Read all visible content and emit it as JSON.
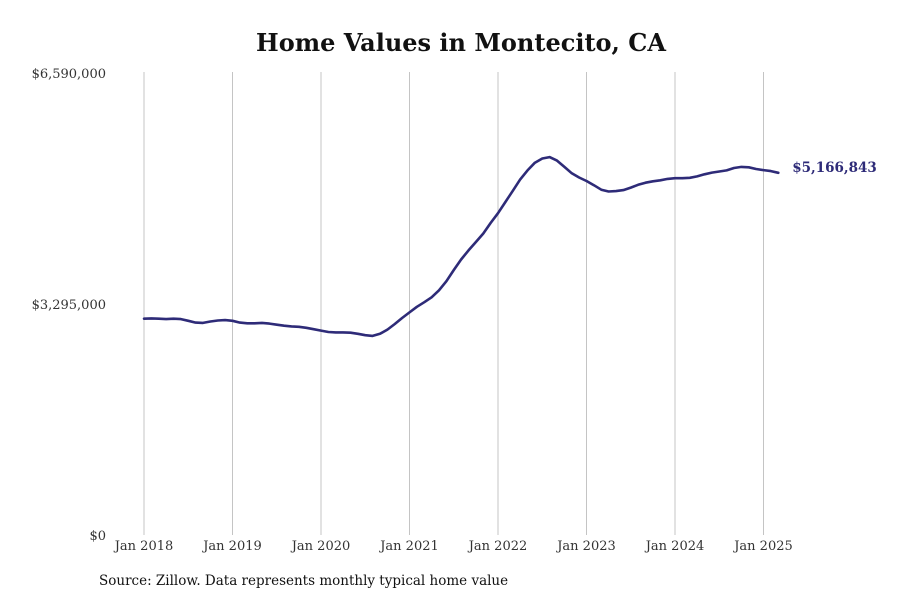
{
  "chart_data": {
    "type": "line",
    "title": "Home Values in Montecito, CA",
    "xlabel": "",
    "ylabel": "",
    "ylim": [
      0,
      6590000
    ],
    "y_ticks": [
      "$0",
      "$3,295,000",
      "$6,590,000"
    ],
    "x_ticks": [
      "Jan 2018",
      "Jan 2019",
      "Jan 2020",
      "Jan 2021",
      "Jan 2022",
      "Jan 2023",
      "Jan 2024",
      "Jan 2025"
    ],
    "grid": "vertical",
    "series_color": "#2e2b78",
    "end_label": "$5,166,843",
    "series": [
      {
        "x": [
          "2018-01",
          "2018-02",
          "2018-03",
          "2018-04",
          "2018-05",
          "2018-06",
          "2018-07",
          "2018-08",
          "2018-09",
          "2018-10",
          "2018-11",
          "2018-12",
          "2019-01",
          "2019-02",
          "2019-03",
          "2019-04",
          "2019-05",
          "2019-06",
          "2019-07",
          "2019-08",
          "2019-09",
          "2019-10",
          "2019-11",
          "2019-12",
          "2020-01",
          "2020-02",
          "2020-03",
          "2020-04",
          "2020-05",
          "2020-06",
          "2020-07",
          "2020-08",
          "2020-09",
          "2020-10",
          "2020-11",
          "2020-12",
          "2021-01",
          "2021-02",
          "2021-03",
          "2021-04",
          "2021-05",
          "2021-06",
          "2021-07",
          "2021-08",
          "2021-09",
          "2021-10",
          "2021-11",
          "2021-12",
          "2022-01",
          "2022-02",
          "2022-03",
          "2022-04",
          "2022-05",
          "2022-06",
          "2022-07",
          "2022-08",
          "2022-09",
          "2022-10",
          "2022-11",
          "2022-12",
          "2023-01",
          "2023-02",
          "2023-03",
          "2023-04",
          "2023-05",
          "2023-06",
          "2023-07",
          "2023-08",
          "2023-09",
          "2023-10",
          "2023-11",
          "2023-12",
          "2024-01",
          "2024-02",
          "2024-03",
          "2024-04",
          "2024-05",
          "2024-06",
          "2024-07",
          "2024-08",
          "2024-09",
          "2024-10",
          "2024-11",
          "2024-12",
          "2025-01",
          "2025-02",
          "2025-03"
        ],
        "values": [
          3085000,
          3090000,
          3085000,
          3080000,
          3085000,
          3080000,
          3055000,
          3030000,
          3025000,
          3045000,
          3060000,
          3065000,
          3055000,
          3030000,
          3020000,
          3020000,
          3025000,
          3015000,
          3000000,
          2985000,
          2975000,
          2970000,
          2955000,
          2935000,
          2915000,
          2895000,
          2890000,
          2890000,
          2885000,
          2870000,
          2850000,
          2840000,
          2870000,
          2930000,
          3010000,
          3095000,
          3175000,
          3255000,
          3320000,
          3390000,
          3490000,
          3620000,
          3780000,
          3930000,
          4060000,
          4180000,
          4300000,
          4450000,
          4590000,
          4750000,
          4910000,
          5070000,
          5200000,
          5310000,
          5370000,
          5390000,
          5340000,
          5250000,
          5160000,
          5100000,
          5050000,
          4990000,
          4925000,
          4900000,
          4905000,
          4920000,
          4955000,
          4995000,
          5025000,
          5045000,
          5060000,
          5080000,
          5090000,
          5090000,
          5095000,
          5115000,
          5145000,
          5170000,
          5185000,
          5200000,
          5235000,
          5250000,
          5245000,
          5220000,
          5205000,
          5190000,
          5166843
        ]
      }
    ],
    "source": "Source: Zillow. Data represents monthly typical home value"
  }
}
